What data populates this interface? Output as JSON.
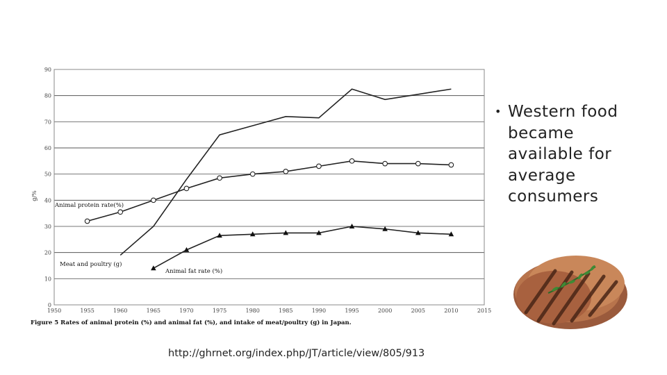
{
  "chart_data": {
    "type": "line",
    "ylabel": "g/%",
    "caption": "Figure 5 Rates of animal protein (%) and animal fat (%), and intake of meat/poultry (g) in Japan.",
    "xlim": [
      1950,
      2015
    ],
    "ylim": [
      0,
      90
    ],
    "x_ticks": [
      "1950",
      "1955",
      "1960",
      "1965",
      "1970",
      "1975",
      "1980",
      "1985",
      "1990",
      "1995",
      "2000",
      "2005",
      "2010",
      "2015"
    ],
    "y_ticks": [
      "0",
      "10",
      "20",
      "30",
      "40",
      "50",
      "60",
      "70",
      "80",
      "90"
    ],
    "grid": "horizontal",
    "series": [
      {
        "name": "Meat and poultry (g)",
        "marker": "none",
        "x": [
          1960,
          1965,
          1970,
          1975,
          1980,
          1985,
          1990,
          1995,
          2000,
          2005,
          2010
        ],
        "values": [
          19,
          30,
          48,
          65,
          68.5,
          72,
          71.5,
          82.5,
          78.5,
          80.5,
          82.5
        ]
      },
      {
        "name": "Animal protein rate(%)",
        "marker": "circle",
        "x": [
          1955,
          1960,
          1965,
          1970,
          1975,
          1980,
          1985,
          1990,
          1995,
          2000,
          2005,
          2010
        ],
        "values": [
          32,
          35.5,
          40,
          44.5,
          48.5,
          50,
          51,
          53,
          55,
          54,
          54,
          53.5
        ]
      },
      {
        "name": "Animal fat rate (%)",
        "marker": "triangle",
        "x": [
          1965,
          1970,
          1975,
          1980,
          1985,
          1990,
          1995,
          2000,
          2005,
          2010
        ],
        "values": [
          14,
          21,
          26.5,
          27,
          27.5,
          27.5,
          30,
          29,
          27.5,
          27
        ]
      }
    ]
  },
  "slide": {
    "bullet_text": "Western food became available for average consumers",
    "source_url": "http://ghrnet.org/index.php/JT/article/view/805/913"
  },
  "image": {
    "icon": "grilled-steak-icon"
  }
}
